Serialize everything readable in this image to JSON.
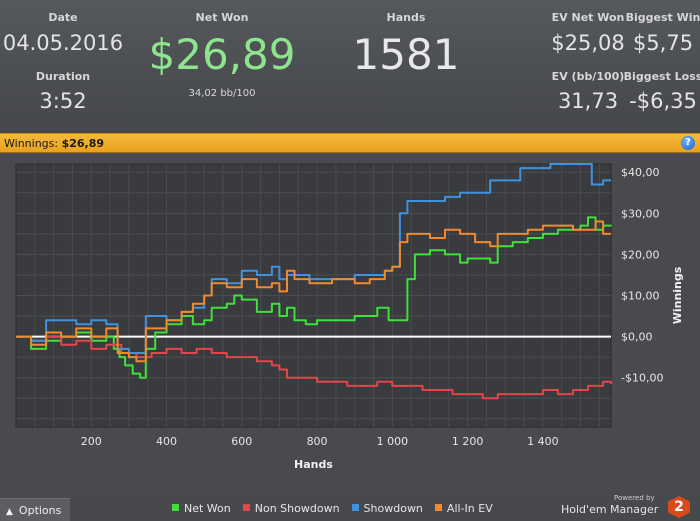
{
  "stats": {
    "date_label": "Date",
    "date_value": "04.05.2016",
    "duration_label": "Duration",
    "duration_value": "3:52",
    "net_won_label": "Net Won",
    "net_won_value": "$26,89",
    "net_won_sub": "34,02 bb/100",
    "hands_label": "Hands",
    "hands_value": "1581",
    "ev_net_won_label": "EV Net Won",
    "ev_net_won_value": "$25,08",
    "biggest_win_label": "Biggest Win",
    "biggest_win_value": "$5,75",
    "ev_bb_label": "EV (bb/100)",
    "ev_bb_value": "31,73",
    "biggest_loss_label": "Biggest Loss",
    "biggest_loss_value": "-$6,35"
  },
  "banner": {
    "label": "Winnings:",
    "value": "$26,89",
    "help_label": "?"
  },
  "bottom": {
    "options_arrow": "▲",
    "options_label": "Options",
    "powered_by": "Powered by",
    "brand": "Hold'em Manager",
    "brand_version": "2"
  },
  "colors": {
    "net_won": "#3ee03a",
    "non_showdown": "#e2454a",
    "showdown": "#3f92e0",
    "all_in_ev": "#f08a2c",
    "banner": "#f2b134",
    "net_won_text": "#8ee58e"
  },
  "chart_data": {
    "type": "line",
    "xlabel": "Hands",
    "ylabel": "Winnings",
    "xlim": [
      0,
      1581
    ],
    "ylim": [
      -22,
      42
    ],
    "x_ticks": [
      200,
      400,
      600,
      800,
      1000,
      1200,
      1400
    ],
    "x_tick_labels": [
      "200",
      "400",
      "600",
      "800",
      "1 000",
      "1 200",
      "1 400"
    ],
    "y_ticks": [
      40,
      30,
      20,
      10,
      0,
      -10
    ],
    "y_tick_labels": [
      "$40,00",
      "$30,00",
      "$20,00",
      "$10,00",
      "$0,00",
      "-$10,00"
    ],
    "grid": true,
    "legend_position": "bottom",
    "series": [
      {
        "name": "Net Won",
        "color_key": "net_won",
        "x": [
          0,
          40,
          80,
          120,
          160,
          200,
          240,
          260,
          275,
          290,
          310,
          330,
          345,
          370,
          400,
          440,
          470,
          500,
          520,
          560,
          580,
          600,
          640,
          680,
          700,
          720,
          740,
          770,
          800,
          860,
          900,
          940,
          960,
          990,
          1010,
          1040,
          1060,
          1100,
          1140,
          1180,
          1200,
          1240,
          1260,
          1280,
          1320,
          1360,
          1400,
          1440,
          1460,
          1500,
          1520,
          1540,
          1560,
          1581
        ],
        "y": [
          0,
          -3,
          -1,
          0,
          1,
          -1,
          0,
          -3,
          -5,
          -7,
          -9,
          -10,
          -3,
          1,
          3,
          5,
          3,
          4,
          7,
          8,
          10,
          9,
          6,
          8,
          5,
          7,
          4,
          3,
          4,
          4,
          5,
          5,
          7,
          4,
          4,
          14,
          20,
          21,
          20,
          18,
          19,
          19,
          18,
          22,
          23,
          24,
          25,
          26,
          26,
          27,
          29,
          26,
          27,
          26.9
        ]
      },
      {
        "name": "Non Showdown",
        "color_key": "non_showdown",
        "x": [
          0,
          40,
          80,
          120,
          160,
          200,
          240,
          280,
          320,
          360,
          400,
          440,
          480,
          520,
          560,
          600,
          640,
          680,
          700,
          720,
          760,
          800,
          840,
          880,
          920,
          960,
          1000,
          1040,
          1080,
          1120,
          1160,
          1200,
          1240,
          1280,
          1320,
          1360,
          1400,
          1440,
          1480,
          1520,
          1560,
          1581
        ],
        "y": [
          0,
          -1,
          0,
          -2,
          -1,
          -3,
          -2,
          -4,
          -5,
          -4,
          -3,
          -4,
          -3,
          -4,
          -5,
          -5,
          -6,
          -7,
          -8,
          -10,
          -10,
          -11,
          -11,
          -12,
          -12,
          -11,
          -12,
          -12,
          -13,
          -13,
          -14,
          -14,
          -15,
          -14,
          -14,
          -14,
          -13,
          -14,
          -13,
          -12,
          -11,
          -11.5
        ]
      },
      {
        "name": "Showdown",
        "color_key": "showdown",
        "x": [
          0,
          40,
          80,
          120,
          160,
          200,
          240,
          270,
          300,
          330,
          345,
          400,
          440,
          470,
          500,
          520,
          560,
          600,
          640,
          680,
          700,
          720,
          780,
          840,
          900,
          940,
          980,
          1000,
          1020,
          1040,
          1060,
          1100,
          1140,
          1180,
          1200,
          1260,
          1300,
          1340,
          1380,
          1420,
          1460,
          1500,
          1530,
          1560,
          1581
        ],
        "y": [
          0,
          -1,
          4,
          4,
          3,
          4,
          3,
          -3,
          -4,
          -4,
          5,
          4,
          6,
          7,
          10,
          14,
          13,
          16,
          15,
          17,
          14,
          15,
          14,
          14,
          15,
          15,
          16,
          17,
          30,
          33,
          33,
          33,
          34,
          35,
          35,
          38,
          38,
          41,
          41,
          42,
          42,
          42,
          37,
          38,
          38
        ]
      },
      {
        "name": "All-In EV",
        "color_key": "all_in_ev",
        "x": [
          0,
          40,
          80,
          120,
          160,
          200,
          240,
          270,
          300,
          320,
          345,
          400,
          440,
          470,
          500,
          520,
          560,
          600,
          640,
          680,
          700,
          720,
          740,
          780,
          840,
          900,
          940,
          980,
          1000,
          1020,
          1040,
          1060,
          1100,
          1140,
          1180,
          1220,
          1260,
          1280,
          1320,
          1360,
          1400,
          1440,
          1480,
          1520,
          1540,
          1560,
          1581
        ],
        "y": [
          0,
          -2,
          1,
          0,
          2,
          0,
          2,
          -4,
          -5,
          -6,
          2,
          4,
          6,
          8,
          10,
          13,
          12,
          14,
          12,
          13,
          11,
          16,
          14,
          13,
          14,
          13,
          14,
          16,
          17,
          23,
          25,
          25,
          24,
          26,
          25,
          23,
          22,
          25,
          25,
          26,
          27,
          27,
          26,
          26,
          28,
          25,
          25
        ]
      }
    ]
  }
}
